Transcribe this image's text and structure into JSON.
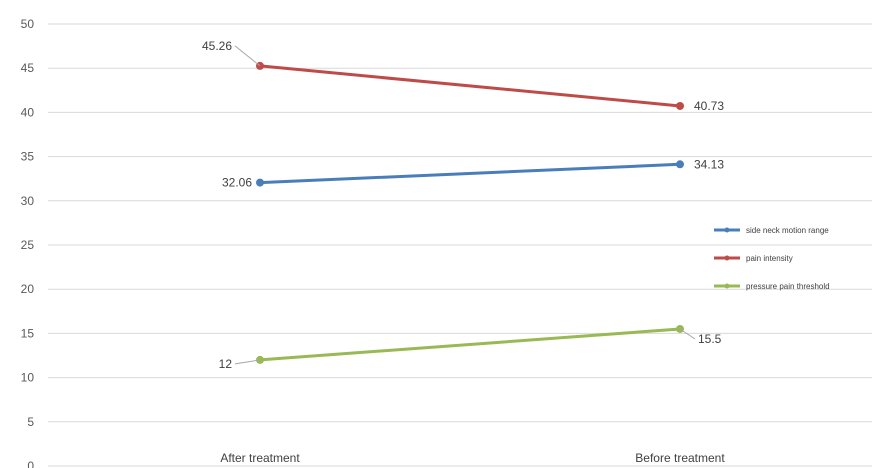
{
  "chart_data": {
    "type": "line",
    "title": "",
    "xlabel": "",
    "ylabel": "",
    "categories": [
      "After treatment",
      "Before treatment"
    ],
    "ylim": [
      0,
      50
    ],
    "yticks": [
      "0",
      "5",
      "10",
      "15",
      "20",
      "25",
      "30",
      "35",
      "40",
      "45",
      "50"
    ],
    "grid": true,
    "legend_position": "right",
    "series": [
      {
        "name": "side neck motion range",
        "values": [
          32.06,
          34.13
        ],
        "labels": [
          "32.06",
          "34.13"
        ],
        "color": "#4a7ebb"
      },
      {
        "name": "pain intensity",
        "values": [
          45.26,
          40.73
        ],
        "labels": [
          "45.26",
          "40.73"
        ],
        "color": "#be4b48"
      },
      {
        "name": "pressure pain threshold",
        "values": [
          12,
          15.5
        ],
        "labels": [
          "12",
          "15.5"
        ],
        "color": "#98b954"
      }
    ]
  }
}
